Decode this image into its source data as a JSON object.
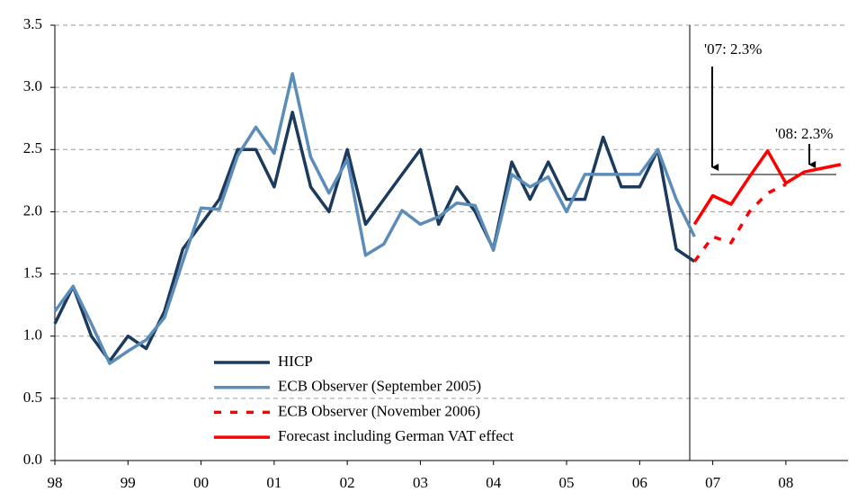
{
  "chart_data": {
    "type": "line",
    "x": [
      1998,
      1998.25,
      1998.5,
      1998.75,
      1999,
      1999.25,
      1999.5,
      1999.75,
      2000,
      2000.25,
      2000.5,
      2000.75,
      2001,
      2001.25,
      2001.5,
      2001.75,
      2002,
      2002.25,
      2002.5,
      2002.75,
      2003,
      2003.25,
      2003.5,
      2003.75,
      2004,
      2004.25,
      2004.5,
      2004.75,
      2005,
      2005.25,
      2005.5,
      2005.75,
      2006,
      2006.25,
      2006.5,
      2006.75
    ],
    "series": [
      {
        "name": "HICP",
        "color": "#1b3a5c",
        "dash": false,
        "values": [
          1.1,
          1.4,
          1.0,
          0.8,
          1.0,
          0.9,
          1.2,
          1.7,
          1.9,
          2.1,
          2.5,
          2.5,
          2.2,
          2.8,
          2.2,
          2.0,
          2.5,
          1.9,
          2.1,
          2.3,
          2.5,
          1.9,
          2.2,
          2.0,
          1.7,
          2.4,
          2.1,
          2.4,
          2.1,
          2.1,
          2.6,
          2.2,
          2.2,
          2.5,
          1.7,
          1.6
        ]
      },
      {
        "name": "ECB Observer (September 2005)",
        "color": "#5b8db8",
        "dash": false,
        "values": [
          1.2,
          1.4,
          1.1,
          0.78,
          0.88,
          0.97,
          1.15,
          1.6,
          2.03,
          2.02,
          2.45,
          2.68,
          2.47,
          3.11,
          2.44,
          2.15,
          2.42,
          1.65,
          1.74,
          2.01,
          1.9,
          1.96,
          2.07,
          2.05,
          1.69,
          2.3,
          2.2,
          2.28,
          2.0,
          2.3,
          2.3,
          2.3,
          2.3,
          2.5,
          2.1,
          1.8
        ]
      },
      {
        "name": "ECB Observer (November 2006)",
        "color": "#ff0000",
        "dash": true,
        "x": [
          2006.75,
          2007,
          2007.25,
          2007.5,
          2007.75,
          2008
        ],
        "values": [
          1.6,
          1.8,
          1.75,
          2.0,
          2.15,
          2.22
        ]
      },
      {
        "name": "Forecast including German VAT effect",
        "color": "#ff0000",
        "dash": false,
        "x": [
          2006.75,
          2007,
          2007.25,
          2007.5,
          2007.75,
          2008,
          2008.25,
          2008.5,
          2008.75
        ],
        "values": [
          1.9,
          2.13,
          2.06,
          2.28,
          2.49,
          2.23,
          2.32,
          2.35,
          2.38
        ]
      }
    ],
    "annotations": [
      {
        "text": "'07: 2.3%",
        "value": 2.3
      },
      {
        "text": "'08: 2.3%",
        "value": 2.3
      }
    ],
    "xlim": [
      1998,
      2008.85
    ],
    "xticks": [
      {
        "value": 1998,
        "label": "98"
      },
      {
        "value": 1999,
        "label": "99"
      },
      {
        "value": 2000,
        "label": "00"
      },
      {
        "value": 2001,
        "label": "01"
      },
      {
        "value": 2002,
        "label": "02"
      },
      {
        "value": 2003,
        "label": "03"
      },
      {
        "value": 2004,
        "label": "04"
      },
      {
        "value": 2005,
        "label": "05"
      },
      {
        "value": 2006,
        "label": "06"
      },
      {
        "value": 2007,
        "label": "07"
      },
      {
        "value": 2008,
        "label": "08"
      }
    ],
    "ylim": [
      0,
      3.5
    ],
    "yticks": [
      {
        "value": 0,
        "label": "0.0"
      },
      0.5,
      {
        "value": 1,
        "label": "1.0"
      },
      1.5,
      {
        "value": 2,
        "label": "2.0"
      },
      2.5,
      {
        "value": 3,
        "label": "3.0"
      },
      3.5
    ],
    "grid": true
  }
}
